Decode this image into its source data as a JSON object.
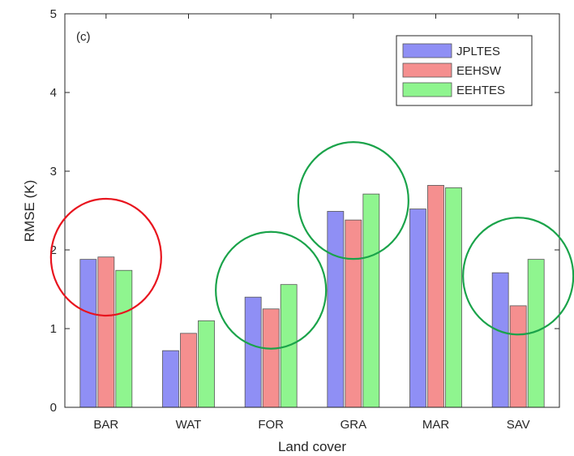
{
  "chart_data": {
    "type": "bar",
    "panel_label": "(c)",
    "xlabel": "Land cover",
    "ylabel": "RMSE (K)",
    "ylim": [
      0,
      5
    ],
    "yticks": [
      "0",
      "1",
      "2",
      "3",
      "4",
      "5"
    ],
    "categories": [
      "BAR",
      "WAT",
      "FOR",
      "GRA",
      "MAR",
      "SAV"
    ],
    "series": [
      {
        "name": "JPLTES",
        "color": "#8f8ff5",
        "values": [
          1.88,
          0.72,
          1.4,
          2.49,
          2.52,
          1.71
        ]
      },
      {
        "name": "EEHSW",
        "color": "#f58f8f",
        "values": [
          1.91,
          0.94,
          1.25,
          2.38,
          2.82,
          1.29
        ]
      },
      {
        "name": "EEHTES",
        "color": "#8ff58f",
        "values": [
          1.74,
          1.1,
          1.56,
          2.71,
          2.79,
          1.88
        ]
      }
    ],
    "legend_position": "top-right",
    "highlights": [
      {
        "category": "BAR",
        "color": "#e8141e"
      },
      {
        "category": "FOR",
        "color": "#1aa34a"
      },
      {
        "category": "GRA",
        "color": "#1aa34a"
      },
      {
        "category": "SAV",
        "color": "#1aa34a"
      }
    ]
  }
}
